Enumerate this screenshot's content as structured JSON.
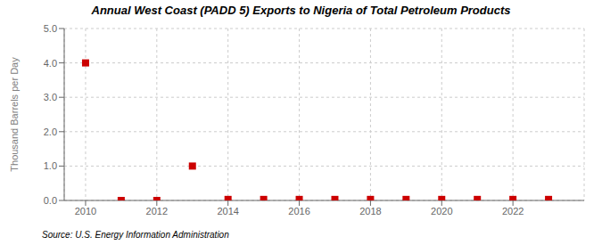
{
  "chart_data": {
    "type": "scatter",
    "title": "Annual West Coast (PADD 5) Exports to Nigeria of Total Petroleum Products",
    "ylabel": "Thousand Barrels per Day",
    "annotations": [
      "Source: U.S. Energy Information Administration"
    ],
    "x": [
      2010,
      2011,
      2012,
      2013,
      2014,
      2015,
      2016,
      2017,
      2018,
      2019,
      2020,
      2021,
      2022,
      2023
    ],
    "values": [
      4.0,
      0.0,
      0.0,
      1.0,
      0.03,
      0.03,
      0.03,
      0.03,
      0.03,
      0.03,
      0.03,
      0.03,
      0.03,
      0.03
    ],
    "color": "#cc0000",
    "marker": "square",
    "xlim": [
      2009.4,
      2024.0
    ],
    "xticks": [
      2010,
      2012,
      2014,
      2016,
      2018,
      2020,
      2022
    ],
    "ylim": [
      0.0,
      5.0
    ],
    "yticks": [
      {
        "value": 0.0,
        "label": "0.0"
      },
      {
        "value": 1.0,
        "label": "1.0"
      },
      {
        "value": 2.0,
        "label": "2.0"
      },
      {
        "value": 3.0,
        "label": "3.0"
      },
      {
        "value": 4.0,
        "label": "4.0"
      },
      {
        "value": 5.0,
        "label": "5.0"
      }
    ],
    "grid": true
  }
}
